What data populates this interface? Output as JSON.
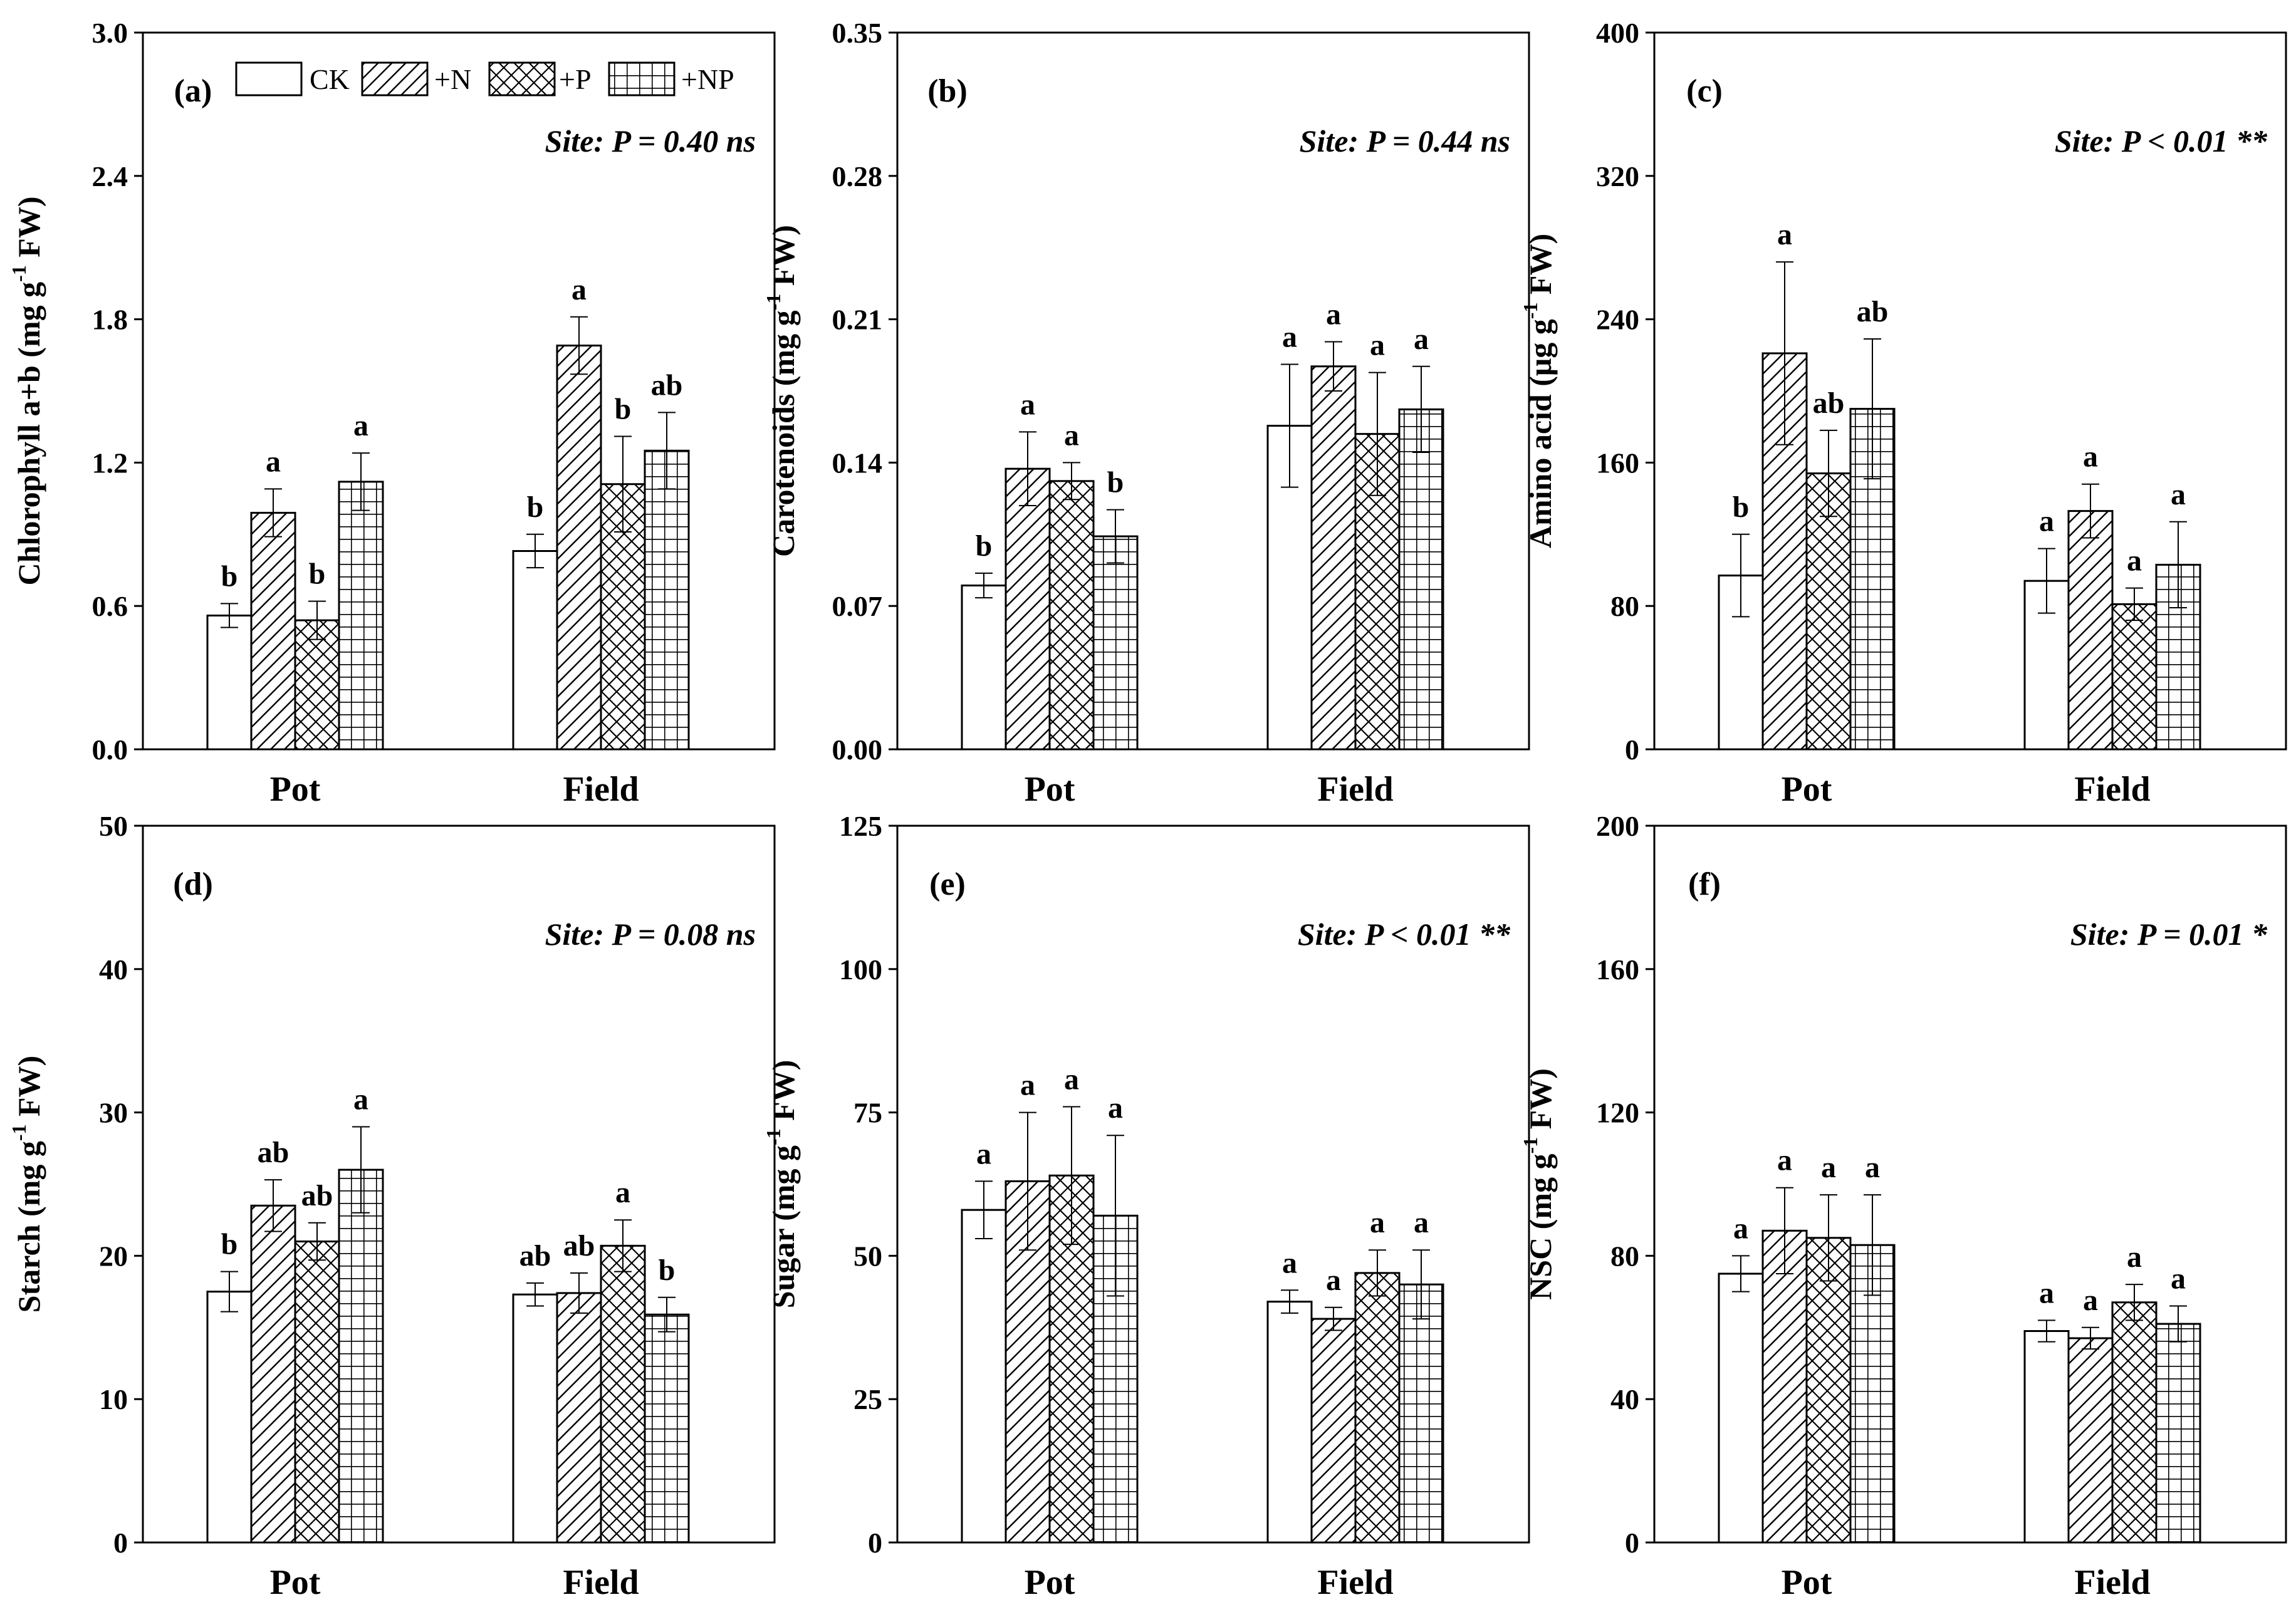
{
  "legend": [
    "CK",
    "+N",
    "+P",
    "+NP"
  ],
  "x_categories": [
    "Pot",
    "Field"
  ],
  "patterns": [
    "none",
    "diagonal",
    "crosshatch",
    "grid"
  ],
  "chart_data": [
    {
      "type": "bar",
      "panel_label": "(a)",
      "ylabel_main": "Chlorophyll a+b (mg g",
      "ylabel_sup": "-1",
      "ylabel_tail": " FW)",
      "ylim": [
        0,
        3.0
      ],
      "yticks": [
        "0.0",
        "0.6",
        "1.2",
        "1.8",
        "2.4",
        "3.0"
      ],
      "site_stat": "Site: P = 0.40 ns",
      "categories": [
        "Pot",
        "Field"
      ],
      "series": [
        {
          "name": "CK",
          "values": [
            0.56,
            0.83
          ],
          "errors": [
            0.05,
            0.07
          ],
          "letters": [
            "b",
            "b"
          ]
        },
        {
          "name": "+N",
          "values": [
            0.99,
            1.69
          ],
          "errors": [
            0.1,
            0.12
          ],
          "letters": [
            "a",
            "a"
          ]
        },
        {
          "name": "+P",
          "values": [
            0.54,
            1.11
          ],
          "errors": [
            0.08,
            0.2
          ],
          "letters": [
            "b",
            "b"
          ]
        },
        {
          "name": "+NP",
          "values": [
            1.12,
            1.25
          ],
          "errors": [
            0.12,
            0.16
          ],
          "letters": [
            "a",
            "ab"
          ]
        }
      ]
    },
    {
      "type": "bar",
      "panel_label": "(b)",
      "ylabel_main": "Carotenoids (mg g",
      "ylabel_sup": "-1",
      "ylabel_tail": " FW)",
      "ylim": [
        0,
        0.35
      ],
      "yticks": [
        "0.00",
        "0.07",
        "0.14",
        "0.21",
        "0.28",
        "0.35"
      ],
      "site_stat": "Site: P = 0.44 ns",
      "categories": [
        "Pot",
        "Field"
      ],
      "series": [
        {
          "name": "CK",
          "values": [
            0.08,
            0.158
          ],
          "errors": [
            0.006,
            0.03
          ],
          "letters": [
            "b",
            "a"
          ]
        },
        {
          "name": "+N",
          "values": [
            0.137,
            0.187
          ],
          "errors": [
            0.018,
            0.012
          ],
          "letters": [
            "a",
            "a"
          ]
        },
        {
          "name": "+P",
          "values": [
            0.131,
            0.154
          ],
          "errors": [
            0.009,
            0.03
          ],
          "letters": [
            "a",
            "a"
          ]
        },
        {
          "name": "+NP",
          "values": [
            0.104,
            0.166
          ],
          "errors": [
            0.013,
            0.021
          ],
          "letters": [
            "b",
            "a"
          ]
        }
      ]
    },
    {
      "type": "bar",
      "panel_label": "(c)",
      "ylabel_main": "Amino acid (μg g",
      "ylabel_sup": "-1",
      "ylabel_tail": " FW)",
      "ylim": [
        0,
        400
      ],
      "yticks": [
        "0",
        "80",
        "160",
        "240",
        "320",
        "400"
      ],
      "site_stat": "Site: P < 0.01 **",
      "categories": [
        "Pot",
        "Field"
      ],
      "series": [
        {
          "name": "CK",
          "values": [
            97,
            94
          ],
          "errors": [
            23,
            18
          ],
          "letters": [
            "b",
            "a"
          ]
        },
        {
          "name": "+N",
          "values": [
            221,
            133
          ],
          "errors": [
            51,
            15
          ],
          "letters": [
            "a",
            "a"
          ]
        },
        {
          "name": "+P",
          "values": [
            154,
            81
          ],
          "errors": [
            24,
            9
          ],
          "letters": [
            "ab",
            "a"
          ]
        },
        {
          "name": "+NP",
          "values": [
            190,
            103
          ],
          "errors": [
            39,
            24
          ],
          "letters": [
            "ab",
            "a"
          ]
        }
      ]
    },
    {
      "type": "bar",
      "panel_label": "(d)",
      "ylabel_main": "Starch (mg g",
      "ylabel_sup": "-1",
      "ylabel_tail": " FW)",
      "ylim": [
        0,
        50
      ],
      "yticks": [
        "0",
        "10",
        "20",
        "30",
        "40",
        "50"
      ],
      "site_stat": "Site: P = 0.08 ns",
      "categories": [
        "Pot",
        "Field"
      ],
      "series": [
        {
          "name": "CK",
          "values": [
            17.5,
            17.3
          ],
          "errors": [
            1.4,
            0.8
          ],
          "letters": [
            "b",
            "ab"
          ]
        },
        {
          "name": "+N",
          "values": [
            23.5,
            17.4
          ],
          "errors": [
            1.8,
            1.4
          ],
          "letters": [
            "ab",
            "ab"
          ]
        },
        {
          "name": "+P",
          "values": [
            21.0,
            20.7
          ],
          "errors": [
            1.3,
            1.8
          ],
          "letters": [
            "ab",
            "a"
          ]
        },
        {
          "name": "+NP",
          "values": [
            26.0,
            15.9
          ],
          "errors": [
            3.0,
            1.2
          ],
          "letters": [
            "a",
            "b"
          ]
        }
      ]
    },
    {
      "type": "bar",
      "panel_label": "(e)",
      "ylabel_main": "Sugar (mg g",
      "ylabel_sup": "-1",
      "ylabel_tail": " FW)",
      "ylim": [
        0,
        125
      ],
      "yticks": [
        "0",
        "25",
        "50",
        "75",
        "100",
        "125"
      ],
      "site_stat": "Site: P < 0.01 **",
      "categories": [
        "Pot",
        "Field"
      ],
      "series": [
        {
          "name": "CK",
          "values": [
            58,
            42
          ],
          "errors": [
            5,
            2
          ],
          "letters": [
            "a",
            "a"
          ]
        },
        {
          "name": "+N",
          "values": [
            63,
            39
          ],
          "errors": [
            12,
            2
          ],
          "letters": [
            "a",
            "a"
          ]
        },
        {
          "name": "+P",
          "values": [
            64,
            47
          ],
          "errors": [
            12,
            4
          ],
          "letters": [
            "a",
            "a"
          ]
        },
        {
          "name": "+NP",
          "values": [
            57,
            45
          ],
          "errors": [
            14,
            6
          ],
          "letters": [
            "a",
            "a"
          ]
        }
      ]
    },
    {
      "type": "bar",
      "panel_label": "(f)",
      "ylabel_main": "NSC (mg g",
      "ylabel_sup": "-1",
      "ylabel_tail": " FW)",
      "ylim": [
        0,
        200
      ],
      "yticks": [
        "0",
        "40",
        "80",
        "120",
        "160",
        "200"
      ],
      "site_stat": "Site: P = 0.01 *",
      "categories": [
        "Pot",
        "Field"
      ],
      "series": [
        {
          "name": "CK",
          "values": [
            75,
            59
          ],
          "errors": [
            5,
            3
          ],
          "letters": [
            "a",
            "a"
          ]
        },
        {
          "name": "+N",
          "values": [
            87,
            57
          ],
          "errors": [
            12,
            3
          ],
          "letters": [
            "a",
            "a"
          ]
        },
        {
          "name": "+P",
          "values": [
            85,
            67
          ],
          "errors": [
            12,
            5
          ],
          "letters": [
            "a",
            "a"
          ]
        },
        {
          "name": "+NP",
          "values": [
            83,
            61
          ],
          "errors": [
            14,
            5
          ],
          "letters": [
            "a",
            "a"
          ]
        }
      ]
    }
  ]
}
